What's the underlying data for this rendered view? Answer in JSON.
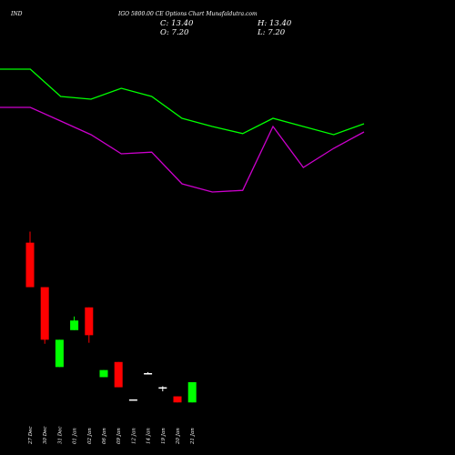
{
  "header": {
    "symbol": "IND",
    "title": "IGO 5800.00 CE Options Chart Munafaldutra.com",
    "close_text": "C: 13.40",
    "high_text": "H: 13.40",
    "open_text": "O: 7.20",
    "low_text": "L: 7.20"
  },
  "colors": {
    "background": "#000000",
    "up": "#00ff00",
    "down": "#ff0000",
    "line_green": "#00ff00",
    "line_magenta": "#cc00cc",
    "doji": "#ffffff"
  },
  "chart_data": [
    {
      "type": "line",
      "series": [
        {
          "values": [
            6.0,
            6.0,
            11.0,
            11.5,
            9.5,
            11.0,
            15.0,
            16.5,
            17.8,
            15.0,
            16.5,
            18.0,
            16.0
          ]
        },
        {
          "values": [
            13.0,
            13.0,
            15.5,
            18.0,
            21.5,
            21.2,
            27.0,
            28.5,
            28.2,
            16.5,
            24.0,
            20.5,
            17.5
          ]
        }
      ],
      "ylim": [
        0,
        40
      ]
    },
    {
      "type": "candlestick",
      "categories": [
        "27 Dec",
        "30 Dec",
        "31 Dec",
        "01 Jan",
        "02 Jan",
        "06 Jan",
        "09 Jan",
        "12 Jan",
        "14 Jan",
        "19 Jan",
        "20 Jan",
        "21 Jan"
      ],
      "candles": [
        {
          "open": 218,
          "high": 240,
          "low": 130,
          "close": 130
        },
        {
          "open": 130,
          "high": 130,
          "low": 18,
          "close": 26
        },
        {
          "open": -28,
          "high": 26,
          "low": -28,
          "close": 26
        },
        {
          "open": 45,
          "high": 72,
          "low": 45,
          "close": 64
        },
        {
          "open": 90,
          "high": 90,
          "low": 20,
          "close": 35
        },
        {
          "open": -48,
          "high": -34,
          "low": -48,
          "close": -34
        },
        {
          "open": -18,
          "high": -18,
          "low": -68,
          "close": -68
        },
        {
          "open": -92,
          "high": -92,
          "low": -92,
          "close": -92
        },
        {
          "open": -40,
          "high": -38,
          "low": -40,
          "close": -40
        },
        {
          "open": -68,
          "high": -66,
          "low": -76,
          "close": -68
        },
        {
          "open": -86,
          "high": -86,
          "low": -98,
          "close": -98
        },
        {
          "open": -98,
          "high": -58,
          "low": -98,
          "close": -58
        }
      ],
      "ylim": [
        -112,
        248
      ]
    }
  ]
}
